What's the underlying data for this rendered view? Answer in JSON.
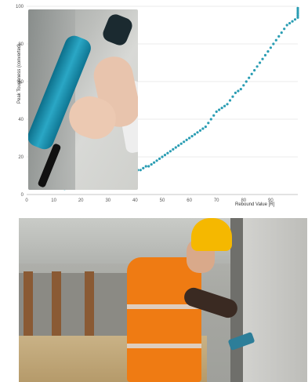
{
  "chart_data": {
    "type": "scatter",
    "title": "",
    "xlabel": "Rebound Value [R]",
    "ylabel": "Peak Toughness (converted)",
    "xlim": [
      0,
      100
    ],
    "ylim": [
      0,
      100
    ],
    "x_ticks": [
      "0",
      "10",
      "20",
      "30",
      "40",
      "50",
      "60",
      "70",
      "80",
      "90"
    ],
    "y_ticks": [
      "0",
      "20",
      "40",
      "60",
      "80",
      "100"
    ],
    "grid": true,
    "legend": "none",
    "point_color": "#2a9db3",
    "series": [
      {
        "x": [
          14,
          17,
          20,
          22,
          24,
          26,
          28,
          29,
          30,
          31,
          32,
          33,
          34,
          35,
          36,
          37,
          38,
          39,
          40,
          41,
          42,
          43,
          44,
          45,
          46,
          47,
          48,
          49,
          50,
          51,
          52,
          53,
          54,
          55,
          56,
          57,
          58,
          59,
          60,
          61,
          62,
          63,
          64,
          65,
          66,
          67,
          68,
          69,
          70,
          71,
          72,
          73,
          74,
          75,
          76,
          77,
          78,
          79,
          80,
          81,
          82,
          83,
          84,
          85,
          86,
          87,
          88,
          89,
          90,
          91,
          92,
          93,
          94,
          95,
          96,
          97,
          98,
          99,
          100,
          101,
          102,
          103,
          104,
          105
        ],
        "y": [
          3,
          4,
          5,
          6,
          6,
          7,
          7,
          7,
          8,
          8,
          8,
          9,
          9,
          10,
          10,
          11,
          11,
          12,
          12,
          13,
          13,
          14,
          15,
          15,
          16,
          17,
          18,
          19,
          20,
          21,
          22,
          23,
          24,
          25,
          26,
          27,
          28,
          29,
          30,
          31,
          32,
          33,
          34,
          35,
          36,
          38,
          40,
          42,
          44,
          45,
          46,
          47,
          48,
          50,
          52,
          54,
          55,
          56,
          58,
          60,
          62,
          64,
          66,
          68,
          70,
          72,
          74,
          76,
          78,
          80,
          82,
          84,
          86,
          88,
          90,
          91,
          92,
          93,
          94,
          95,
          96,
          97,
          98,
          99
        ]
      }
    ]
  },
  "inset_photo": {
    "alt_icon": "rebound-hammer-icon"
  },
  "bottom_photo": {
    "subject_icon": "construction-worker-icon"
  }
}
